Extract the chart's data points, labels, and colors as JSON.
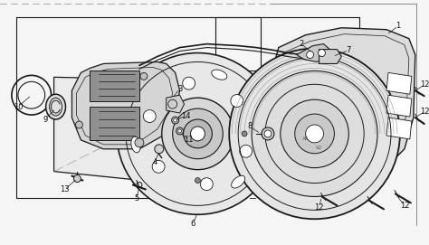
{
  "bg_color": "#f5f5f5",
  "line_color": "#1a1a1a",
  "label_color": "#111111",
  "figsize": [
    4.74,
    2.71
  ],
  "dpi": 100,
  "font_size": 6.0
}
